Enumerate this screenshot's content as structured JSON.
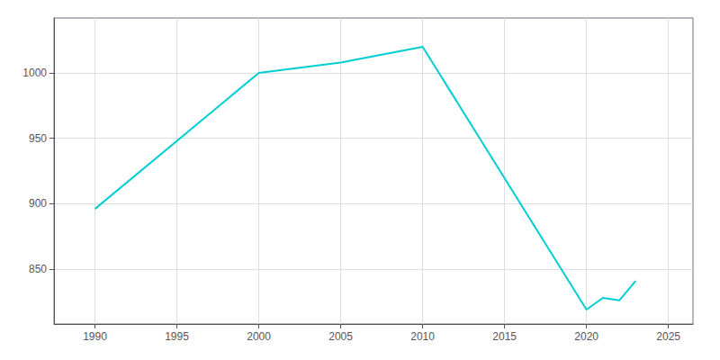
{
  "chart_data": {
    "type": "line",
    "x": [
      1990,
      2000,
      2005,
      2010,
      2020,
      2021,
      2022,
      2023
    ],
    "values": [
      896,
      1000,
      1008,
      1020,
      819,
      828,
      826,
      841
    ],
    "color": "#00CED1",
    "xlim": [
      1987.5,
      2026.5
    ],
    "xticks": [
      1990,
      1995,
      2000,
      2005,
      2010,
      2015,
      2020,
      2025
    ],
    "ylim": [
      808,
      1042
    ],
    "yticks": [
      850,
      900,
      950,
      1000
    ],
    "grid": true
  }
}
